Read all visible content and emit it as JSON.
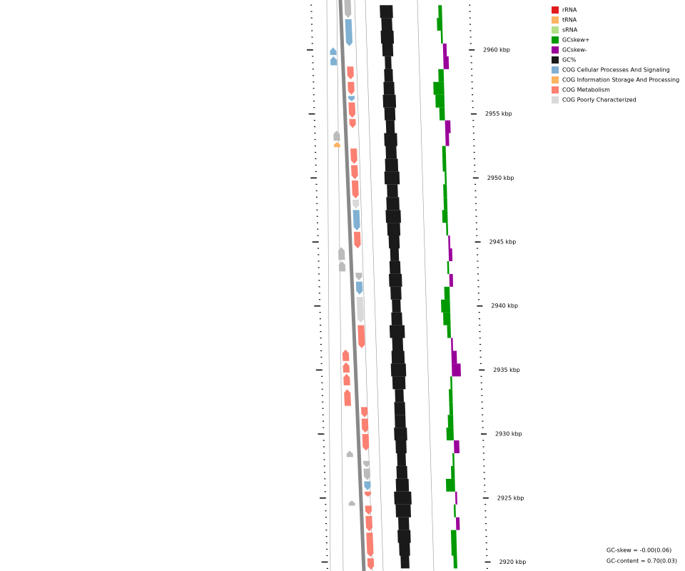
{
  "chart_data": {
    "type": "genome-map",
    "ylim": [
      2919.3,
      2963.9
    ],
    "yticks": [
      {
        "value": 2920,
        "label": "2920 kbp"
      },
      {
        "value": 2925,
        "label": "2925 kbp"
      },
      {
        "value": 2930,
        "label": "2930 kbp"
      },
      {
        "value": 2935,
        "label": "2935 kbp"
      },
      {
        "value": 2940,
        "label": "2940 kbp"
      },
      {
        "value": 2945,
        "label": "2945 kbp"
      },
      {
        "value": 2950,
        "label": "2950 kbp"
      },
      {
        "value": 2955,
        "label": "2955 kbp"
      },
      {
        "value": 2960,
        "label": "2960 kbp"
      }
    ],
    "legend": [
      {
        "name": "rRNA",
        "color": "#e31a1c"
      },
      {
        "name": "tRNA",
        "color": "#fdb462"
      },
      {
        "name": "sRNA",
        "color": "#b2df8a"
      },
      {
        "name": "GCskew+",
        "color": "#009900"
      },
      {
        "name": "GCskew-",
        "color": "#990099"
      },
      {
        "name": "GC%",
        "color": "#1a1a1a"
      },
      {
        "name": "COG Cellular Processes And Signaling",
        "color": "#80b1d3"
      },
      {
        "name": "COG Information Storage And Processing",
        "color": "#fdb462"
      },
      {
        "name": "COG Metabolism",
        "color": "#fb8072"
      },
      {
        "name": "COG Poorly Characterized",
        "color": "#d9d9d9"
      }
    ],
    "x": [
      2920,
      2921,
      2922,
      2923,
      2924,
      2925,
      2926,
      2927,
      2928,
      2929,
      2930,
      2931,
      2932,
      2933,
      2934,
      2935,
      2936,
      2937,
      2938,
      2939,
      2940,
      2941,
      2942,
      2943,
      2944,
      2945,
      2946,
      2947,
      2948,
      2949,
      2950,
      2951,
      2952,
      2953,
      2954,
      2955,
      2956,
      2957,
      2958,
      2959,
      2960,
      2961,
      2962,
      2963
    ],
    "series": [
      {
        "name": "GC%",
        "color": "#1a1a1a",
        "values": [
          0.69,
          0.7,
          0.71,
          0.7,
          0.72,
          0.73,
          0.71,
          0.7,
          0.69,
          0.7,
          0.71,
          0.7,
          0.7,
          0.69,
          0.71,
          0.72,
          0.71,
          0.7,
          0.72,
          0.7,
          0.69,
          0.7,
          0.71,
          0.7,
          0.69,
          0.7,
          0.71,
          0.72,
          0.71,
          0.7,
          0.72,
          0.71,
          0.7,
          0.71,
          0.69,
          0.7,
          0.71,
          0.7,
          0.69,
          0.68,
          0.7,
          0.71,
          0.7,
          0.71
        ]
      },
      {
        "name": "GCskew",
        "color": "#009900",
        "negative_color": "#990099",
        "values": [
          0.02,
          0.03,
          0.03,
          -0.02,
          0.01,
          -0.01,
          0.05,
          0.02,
          0.01,
          -0.03,
          0.04,
          0.03,
          0.02,
          0.02,
          0.01,
          -0.05,
          -0.03,
          -0.01,
          0.02,
          0.04,
          0.05,
          0.03,
          -0.02,
          0.01,
          -0.02,
          -0.01,
          0.01,
          0.03,
          0.02,
          0.02,
          0.01,
          0.02,
          0.02,
          -0.02,
          -0.03,
          0.03,
          0.05,
          0.06,
          0.03,
          -0.03,
          -0.02,
          0.01,
          0.03,
          0.02
        ]
      }
    ],
    "features": [
      {
        "start": 2962.5,
        "end": 2963.9,
        "strand": "-",
        "color": "#bbbbbb"
      },
      {
        "start": 2960.3,
        "end": 2962.4,
        "strand": "-",
        "color": "#80b1d3"
      },
      {
        "start": 2957.7,
        "end": 2958.7,
        "strand": "-",
        "color": "#fb8072"
      },
      {
        "start": 2956.5,
        "end": 2957.5,
        "strand": "-",
        "color": "#fb8072"
      },
      {
        "start": 2956.0,
        "end": 2956.4,
        "strand": "-",
        "color": "#80b1d3"
      },
      {
        "start": 2954.7,
        "end": 2955.9,
        "strand": "-",
        "color": "#fb8072"
      },
      {
        "start": 2953.9,
        "end": 2954.6,
        "strand": "-",
        "color": "#fb8072"
      },
      {
        "start": 2951.1,
        "end": 2952.3,
        "strand": "-",
        "color": "#fb8072"
      },
      {
        "start": 2949.9,
        "end": 2951.0,
        "strand": "-",
        "color": "#fb8072"
      },
      {
        "start": 2948.4,
        "end": 2949.8,
        "strand": "-",
        "color": "#fb8072"
      },
      {
        "start": 2947.6,
        "end": 2948.3,
        "strand": "-",
        "color": "#d9d9d9"
      },
      {
        "start": 2945.9,
        "end": 2947.5,
        "strand": "-",
        "color": "#80b1d3"
      },
      {
        "start": 2944.5,
        "end": 2945.8,
        "strand": "-",
        "color": "#fb8072"
      },
      {
        "start": 2942.0,
        "end": 2942.6,
        "strand": "-",
        "color": "#bbbbbb"
      },
      {
        "start": 2940.9,
        "end": 2941.9,
        "strand": "-",
        "color": "#80b1d3"
      },
      {
        "start": 2938.7,
        "end": 2940.7,
        "strand": "-",
        "color": "#d9d9d9"
      },
      {
        "start": 2936.7,
        "end": 2938.5,
        "strand": "-",
        "color": "#fb8072"
      },
      {
        "start": 2931.3,
        "end": 2932.1,
        "strand": "-",
        "color": "#fb8072"
      },
      {
        "start": 2930.1,
        "end": 2931.2,
        "strand": "-",
        "color": "#fb8072"
      },
      {
        "start": 2928.7,
        "end": 2930.0,
        "strand": "-",
        "color": "#fb8072"
      },
      {
        "start": 2927.4,
        "end": 2927.9,
        "strand": "-",
        "color": "#bbbbbb"
      },
      {
        "start": 2926.4,
        "end": 2927.3,
        "strand": "-",
        "color": "#bbbbbb"
      },
      {
        "start": 2925.6,
        "end": 2926.3,
        "strand": "-",
        "color": "#80b1d3"
      },
      {
        "start": 2925.1,
        "end": 2925.5,
        "strand": "-",
        "color": "#fb8072"
      },
      {
        "start": 2923.7,
        "end": 2924.4,
        "strand": "-",
        "color": "#fb8072"
      },
      {
        "start": 2922.4,
        "end": 2923.6,
        "strand": "-",
        "color": "#fb8072"
      },
      {
        "start": 2920.4,
        "end": 2922.3,
        "strand": "-",
        "color": "#fb8072"
      },
      {
        "start": 2919.4,
        "end": 2920.3,
        "strand": "-",
        "color": "#fb8072"
      },
      {
        "start": 2959.6,
        "end": 2960.2,
        "strand": "+",
        "color": "#80b1d3"
      },
      {
        "start": 2958.8,
        "end": 2959.5,
        "strand": "+",
        "color": "#80b1d3"
      },
      {
        "start": 2952.9,
        "end": 2953.7,
        "strand": "+",
        "color": "#bbbbbb"
      },
      {
        "start": 2952.4,
        "end": 2952.8,
        "strand": "+",
        "color": "#fdb462"
      },
      {
        "start": 2943.6,
        "end": 2944.6,
        "strand": "+",
        "color": "#bbbbbb"
      },
      {
        "start": 2942.7,
        "end": 2943.5,
        "strand": "+",
        "color": "#bbbbbb"
      },
      {
        "start": 2935.7,
        "end": 2936.6,
        "strand": "+",
        "color": "#fb8072"
      },
      {
        "start": 2934.8,
        "end": 2935.6,
        "strand": "+",
        "color": "#fb8072"
      },
      {
        "start": 2933.8,
        "end": 2934.7,
        "strand": "+",
        "color": "#fb8072"
      },
      {
        "start": 2932.2,
        "end": 2933.5,
        "strand": "+",
        "color": "#fb8072"
      },
      {
        "start": 2928.2,
        "end": 2928.7,
        "strand": "+",
        "color": "#bbbbbb"
      },
      {
        "start": 2924.4,
        "end": 2924.8,
        "strand": "+",
        "color": "#bbbbbb"
      }
    ],
    "annotations": [
      "GC-skew = -0.00(0.06)",
      "GC-content = 0.70(0.03)"
    ]
  }
}
